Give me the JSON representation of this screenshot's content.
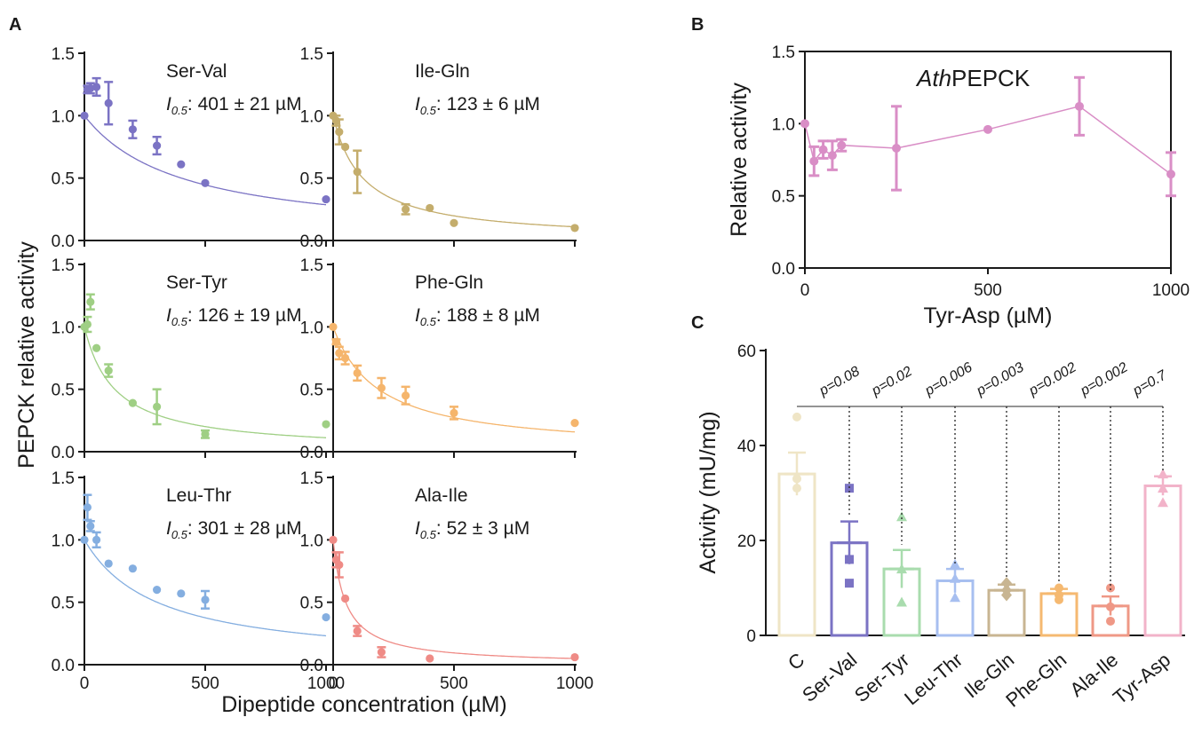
{
  "panels": {
    "A": "A",
    "B": "B",
    "C": "C"
  },
  "A": {
    "ylabel": "PEPCK relative activity",
    "xlabel": "Dipeptide concentration (µM)",
    "xticks": [
      0,
      500,
      1000
    ],
    "yticks": [
      "0.0",
      "0.5",
      "1.0",
      "1.5"
    ]
  },
  "B": {
    "title_italic": "Ath",
    "title_rest": "PEPCK",
    "ylabel": "Relative activity",
    "xlabel": "Tyr-Asp (µM)",
    "xticks": [
      0,
      500,
      1000
    ],
    "yticks": [
      "0.0",
      "0.5",
      "1.0",
      "1.5"
    ]
  },
  "C": {
    "ylabel": "Activity (mU/mg)",
    "yticks": [
      0,
      20,
      40,
      60
    ]
  },
  "chart_data": [
    {
      "type": "scatter",
      "title": "Ser-Val",
      "inhibition_constant": "401 ± 21 µM",
      "color": "#7b73c4",
      "x": [
        0,
        12.5,
        25,
        50,
        100,
        200,
        300,
        400,
        500,
        1000
      ],
      "y": [
        1.0,
        1.21,
        1.22,
        1.23,
        1.1,
        0.89,
        0.76,
        0.61,
        0.46,
        0.33
      ],
      "err": [
        0,
        0.03,
        0.04,
        0.07,
        0.17,
        0.07,
        0.07,
        0,
        0,
        0
      ],
      "fit_i05": 401,
      "xlim": [
        0,
        1000
      ],
      "ylim": [
        0,
        1.5
      ]
    },
    {
      "type": "scatter",
      "title": "Ile-Gln",
      "inhibition_constant": "123 ± 6 µM",
      "color": "#c4ad6c",
      "x": [
        0,
        12.5,
        25,
        50,
        100,
        300,
        400,
        500,
        1000
      ],
      "y": [
        1.0,
        0.96,
        0.87,
        0.75,
        0.55,
        0.25,
        0.26,
        0.14,
        0.1
      ],
      "err": [
        0,
        0.04,
        0.1,
        0,
        0.17,
        0.04,
        0,
        0,
        0
      ],
      "fit_i05": 123,
      "xlim": [
        0,
        1000
      ],
      "ylim": [
        0,
        1.5
      ]
    },
    {
      "type": "scatter",
      "title": "Ser-Tyr",
      "inhibition_constant": "126 ± 19 µM",
      "color": "#9fcf84",
      "x": [
        0,
        12.5,
        25,
        50,
        100,
        200,
        300,
        500,
        1000
      ],
      "y": [
        1.0,
        1.02,
        1.2,
        0.83,
        0.65,
        0.39,
        0.36,
        0.14,
        0.22
      ],
      "err": [
        0,
        0.06,
        0.06,
        0,
        0.05,
        0,
        0.14,
        0.03,
        0
      ],
      "fit_i05": 126,
      "xlim": [
        0,
        1000
      ],
      "ylim": [
        0,
        1.5
      ]
    },
    {
      "type": "scatter",
      "title": "Phe-Gln",
      "inhibition_constant": "188 ± 8 µM",
      "color": "#f5b56c",
      "x": [
        0,
        12.5,
        25,
        50,
        100,
        200,
        300,
        500,
        1000
      ],
      "y": [
        1.0,
        0.88,
        0.79,
        0.75,
        0.63,
        0.51,
        0.45,
        0.31,
        0.23
      ],
      "err": [
        0,
        0.02,
        0.05,
        0.05,
        0.06,
        0.08,
        0.07,
        0.05,
        0
      ],
      "fit_i05": 188,
      "xlim": [
        0,
        1000
      ],
      "ylim": [
        0,
        1.5
      ]
    },
    {
      "type": "scatter",
      "title": "Leu-Thr",
      "inhibition_constant": "301 ± 28 µM",
      "color": "#84aee0",
      "x": [
        0,
        12.5,
        25,
        50,
        100,
        200,
        300,
        400,
        500,
        1000
      ],
      "y": [
        1.0,
        1.26,
        1.11,
        1.0,
        0.81,
        0.77,
        0.6,
        0.57,
        0.52,
        0.38
      ],
      "err": [
        0,
        0.1,
        0.04,
        0.06,
        0,
        0,
        0,
        0,
        0.07,
        0
      ],
      "fit_i05": 301,
      "xlim": [
        0,
        1000
      ],
      "ylim": [
        0,
        1.5
      ]
    },
    {
      "type": "scatter",
      "title": "Ala-Ile",
      "inhibition_constant": "52 ± 3 µM",
      "color": "#ef8b86",
      "x": [
        0,
        12.5,
        25,
        50,
        100,
        200,
        400,
        1000
      ],
      "y": [
        1.0,
        0.84,
        0.8,
        0.53,
        0.27,
        0.1,
        0.05,
        0.06
      ],
      "err": [
        0,
        0.06,
        0.1,
        0,
        0.04,
        0.04,
        0,
        0
      ],
      "fit_i05": 52,
      "xlim": [
        0,
        1000
      ],
      "ylim": [
        0,
        1.5
      ]
    },
    {
      "type": "line",
      "title": "AthPEPCK",
      "color": "#d98ec6",
      "x": [
        0,
        25,
        50,
        75,
        100,
        250,
        500,
        750,
        1000
      ],
      "y": [
        1.0,
        0.74,
        0.82,
        0.78,
        0.85,
        0.83,
        0.96,
        1.12,
        0.65
      ],
      "err": [
        0,
        0.1,
        0.06,
        0.1,
        0.04,
        0.29,
        0,
        0.2,
        0.15
      ],
      "xlabel": "Tyr-Asp (µM)",
      "ylabel": "Relative activity",
      "xlim": [
        0,
        1000
      ],
      "ylim": [
        0,
        1.5
      ]
    },
    {
      "type": "bar",
      "categories": [
        "C",
        "Ser-Val",
        "Ser-Tyr",
        "Leu-Thr",
        "Ile-Gln",
        "Phe-Gln",
        "Ala-Ile",
        "Tyr-Asp"
      ],
      "values": [
        34,
        19.5,
        14,
        11.5,
        9.5,
        8.8,
        6.2,
        31.5
      ],
      "sem": [
        4.5,
        4.5,
        4,
        2.5,
        1.2,
        1,
        2,
        2
      ],
      "colors": [
        "#efe5c6",
        "#7b73c4",
        "#a9dcae",
        "#a7bff0",
        "#c8b592",
        "#f5b971",
        "#ef9886",
        "#f2b3c9"
      ],
      "points": [
        [
          46,
          33,
          31
        ],
        [
          31,
          16,
          11
        ],
        [
          25,
          14,
          7
        ],
        [
          15,
          12,
          8
        ],
        [
          11,
          9.5,
          8.5
        ],
        [
          10,
          8.5,
          7.5
        ],
        [
          10,
          6,
          3
        ],
        [
          34,
          31,
          28
        ]
      ],
      "markers": [
        "circle",
        "square",
        "triangle",
        "triangle",
        "diamond",
        "circle",
        "circle",
        "triangle"
      ],
      "pvalues": [
        "p=0.08",
        "p=0.02",
        "p=0.006",
        "p=0.003",
        "p=0.002",
        "p=0.002",
        "p=0.7"
      ],
      "ylabel": "Activity (mU/mg)",
      "ylim": [
        0,
        60
      ]
    }
  ]
}
